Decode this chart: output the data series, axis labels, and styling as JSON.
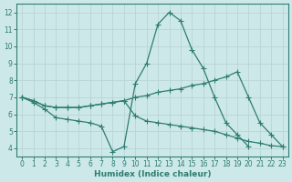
{
  "line1_x": [
    0,
    1,
    2,
    3,
    4,
    5,
    6,
    7,
    8,
    9,
    10,
    11,
    12,
    13,
    14,
    15,
    16,
    17,
    18,
    19,
    20,
    21
  ],
  "line1_y": [
    7.0,
    6.7,
    6.3,
    5.8,
    5.7,
    5.6,
    5.5,
    5.3,
    3.8,
    4.1,
    7.8,
    9.0,
    11.3,
    12.0,
    11.5,
    9.8,
    8.7,
    7.0,
    5.5,
    4.8,
    4.1,
    null
  ],
  "line2_x": [
    0,
    1,
    2,
    3,
    4,
    5,
    6,
    7,
    8,
    9,
    10,
    11,
    12,
    13,
    14,
    15,
    16,
    17,
    18,
    19,
    20,
    21,
    22,
    23
  ],
  "line2_y": [
    7.0,
    6.8,
    6.5,
    6.4,
    6.4,
    6.4,
    6.5,
    6.6,
    6.7,
    6.8,
    7.0,
    7.1,
    7.3,
    7.4,
    7.5,
    7.7,
    7.8,
    8.0,
    8.2,
    8.5,
    7.0,
    5.5,
    4.8,
    4.1
  ],
  "line3_x": [
    0,
    1,
    2,
    3,
    4,
    5,
    6,
    7,
    8,
    9,
    10,
    11,
    12,
    13,
    14,
    15,
    16,
    17,
    18,
    19,
    20,
    21,
    22,
    23
  ],
  "line3_y": [
    7.0,
    6.8,
    6.5,
    6.4,
    6.4,
    6.4,
    6.5,
    6.6,
    6.7,
    6.8,
    5.9,
    5.6,
    5.5,
    5.4,
    5.3,
    5.2,
    5.1,
    5.0,
    4.8,
    4.6,
    4.4,
    4.3,
    4.15,
    4.1
  ],
  "line_color": "#2e7d72",
  "bg_color": "#cde8e8",
  "grid_color": "#b8d4d4",
  "xlabel": "Humidex (Indice chaleur)",
  "xtick_labels": [
    "0",
    "1",
    "2",
    "3",
    "4",
    "5",
    "6",
    "7",
    "8",
    "9",
    "10",
    "11",
    "12",
    "13",
    "14",
    "15",
    "16",
    "17",
    "18",
    "19",
    "20",
    "21",
    "22",
    "23"
  ],
  "xticks": [
    0,
    1,
    2,
    3,
    4,
    5,
    6,
    7,
    8,
    9,
    10,
    11,
    12,
    13,
    14,
    15,
    16,
    17,
    18,
    19,
    20,
    21,
    22,
    23
  ],
  "yticks": [
    4,
    5,
    6,
    7,
    8,
    9,
    10,
    11,
    12
  ],
  "xlim": [
    -0.5,
    23.5
  ],
  "ylim": [
    3.5,
    12.5
  ],
  "marker": "+",
  "markersize": 4.0,
  "linewidth": 0.9,
  "xlabel_fontsize": 6.5,
  "tick_fontsize": 5.5
}
